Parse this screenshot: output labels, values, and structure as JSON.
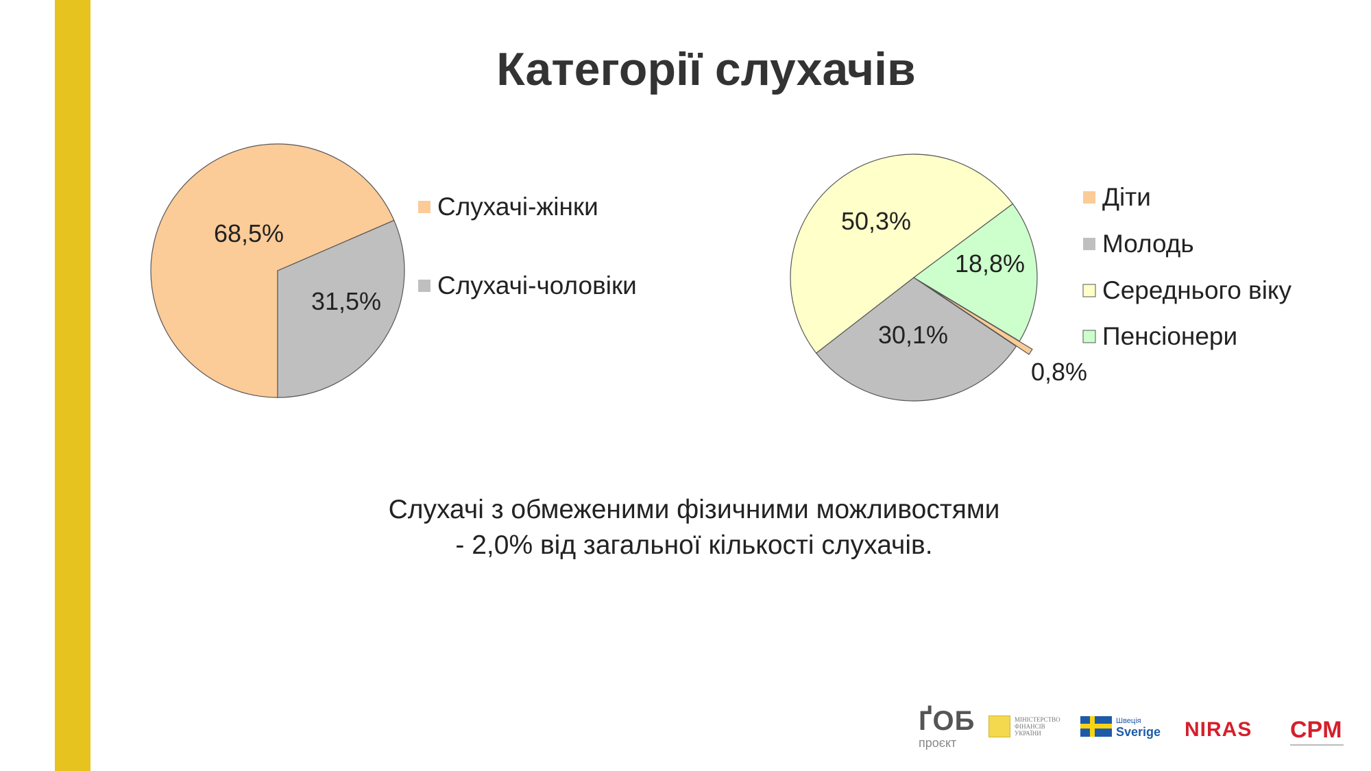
{
  "slide": {
    "title": "Категорії слухачів",
    "note_line1": "Слухачі з обмеженими фізичними можливостями",
    "note_line2": "- 2,0% від загальної кількості слухачів."
  },
  "chart_data": [
    {
      "type": "pie",
      "title": "",
      "slices": [
        {
          "label": "Слухачі-жінки",
          "value": 68.5,
          "value_label": "68,5%",
          "color": "#FBCB98"
        },
        {
          "label": "Слухачі-чоловіки",
          "value": 31.5,
          "value_label": "31,5%",
          "color": "#BFBFBF"
        }
      ],
      "legend_position": "right"
    },
    {
      "type": "pie",
      "title": "",
      "slices": [
        {
          "label": "Діти",
          "value": 0.8,
          "value_label": "0,8%",
          "color": "#FBCB98"
        },
        {
          "label": "Молодь",
          "value": 30.1,
          "value_label": "30,1%",
          "color": "#BFBFBF"
        },
        {
          "label": "Середнього віку",
          "value": 50.3,
          "value_label": "50,3%",
          "color": "#FFFFC9"
        },
        {
          "label": "Пенсіонери",
          "value": 18.8,
          "value_label": "18,8%",
          "color": "#CCFFCC"
        }
      ],
      "legend_position": "right"
    }
  ],
  "logos": {
    "gob": "ҐОБ",
    "gob_sub": "проєкт",
    "mof": "МІНІСТЕРСТВО ФІНАНСІВ УКРАЇНИ",
    "sweden_small": "Швеція",
    "sweden_big": "Sverige",
    "niras": "NIRAS",
    "cpm": "CPM"
  },
  "colors": {
    "accent_bar": "#E6C31E",
    "title": "#333333"
  }
}
